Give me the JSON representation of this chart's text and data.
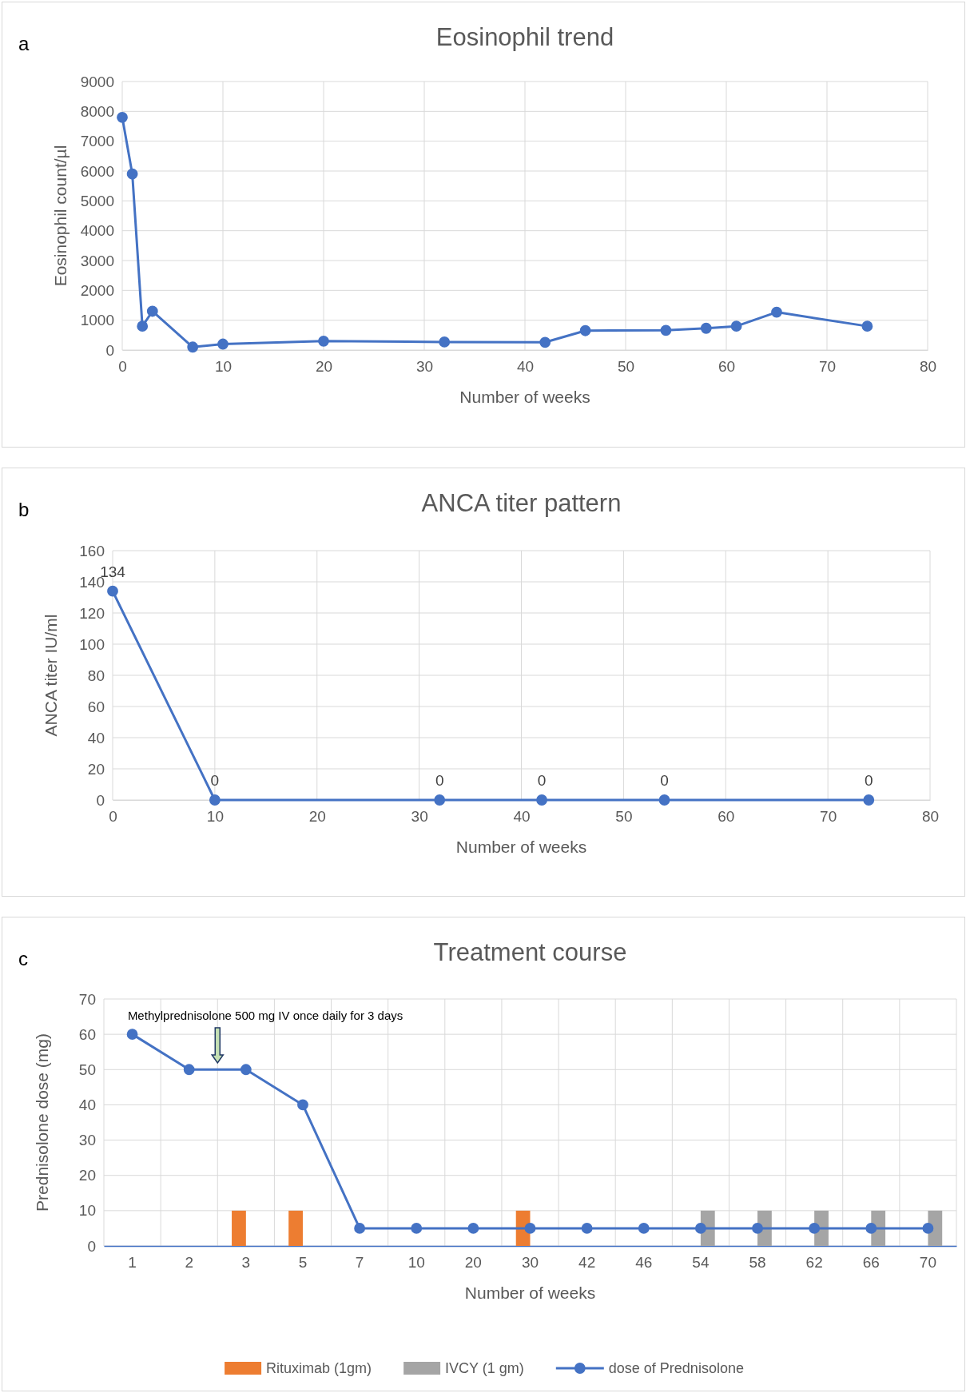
{
  "chart_data": [
    {
      "type": "line",
      "title": "Eosinophil trend",
      "xlabel": "Number of weeks",
      "ylabel": "Eosinophil count/µl",
      "annotations": [
        "a"
      ],
      "x": [
        0,
        1,
        2,
        3,
        7,
        10,
        20,
        32,
        42,
        46,
        54,
        58,
        61,
        65,
        74
      ],
      "series": [
        {
          "color": "#4472c4",
          "values": [
            7800,
            5900,
            800,
            1300,
            100,
            200,
            300,
            270,
            260,
            650,
            660,
            730,
            800,
            1270,
            800
          ]
        }
      ],
      "xlim": [
        0,
        80
      ],
      "xticks": [
        0,
        10,
        20,
        30,
        40,
        50,
        60,
        70,
        80
      ],
      "ylim": [
        0,
        9000
      ],
      "yticks": [
        0,
        1000,
        2000,
        3000,
        4000,
        5000,
        6000,
        7000,
        8000,
        9000
      ],
      "grid": true,
      "marker": "circle",
      "line_style": "solid"
    },
    {
      "type": "line",
      "title": "ANCA titer pattern",
      "xlabel": "Number of weeks",
      "ylabel": "ANCA titer IU/ml",
      "annotations": [
        "b"
      ],
      "x": [
        0,
        10,
        32,
        42,
        54,
        74
      ],
      "series": [
        {
          "color": "#4472c4",
          "values": [
            134,
            0,
            0,
            0,
            0,
            0
          ]
        }
      ],
      "xlim": [
        0,
        80
      ],
      "xticks": [
        0,
        10,
        20,
        30,
        40,
        50,
        60,
        70,
        80
      ],
      "ylim": [
        0,
        160
      ],
      "yticks": [
        0,
        20,
        40,
        60,
        80,
        100,
        120,
        140,
        160
      ],
      "grid": true,
      "marker": "circle",
      "line_style": "solid",
      "data_labels": true
    },
    {
      "type": "bar",
      "title": "Treatment course",
      "xlabel": "Number of weeks",
      "ylabel": "Prednisolone dose (mg)",
      "annotations": [
        "c",
        "Methylprednisolone 500 mg IV once daily for 3 days"
      ],
      "categories": [
        "1",
        "2",
        "3",
        "5",
        "7",
        "10",
        "20",
        "30",
        "42",
        "46",
        "54",
        "58",
        "62",
        "66",
        "70"
      ],
      "series": [
        {
          "name": "Rituximab (1gm)",
          "color": "#ed7d31",
          "values": [
            null,
            null,
            10,
            10,
            null,
            null,
            null,
            10,
            null,
            null,
            null,
            null,
            null,
            null,
            null
          ]
        },
        {
          "name": "IVCY (1 gm)",
          "color": "#a5a5a5",
          "values": [
            null,
            null,
            null,
            null,
            null,
            null,
            null,
            null,
            null,
            null,
            10,
            10,
            10,
            10,
            10
          ]
        },
        {
          "name": "dose of Prednisolone",
          "type": "line",
          "color": "#4472c4",
          "values": [
            60,
            50,
            50,
            40,
            5,
            5,
            5,
            5,
            5,
            5,
            5,
            5,
            5,
            5,
            5
          ]
        }
      ],
      "ylim": [
        0,
        70
      ],
      "yticks": [
        0,
        10,
        20,
        30,
        40,
        50,
        60,
        70
      ],
      "grid": true,
      "marker": "circle",
      "line_style": "solid",
      "legend": "bottom"
    }
  ]
}
